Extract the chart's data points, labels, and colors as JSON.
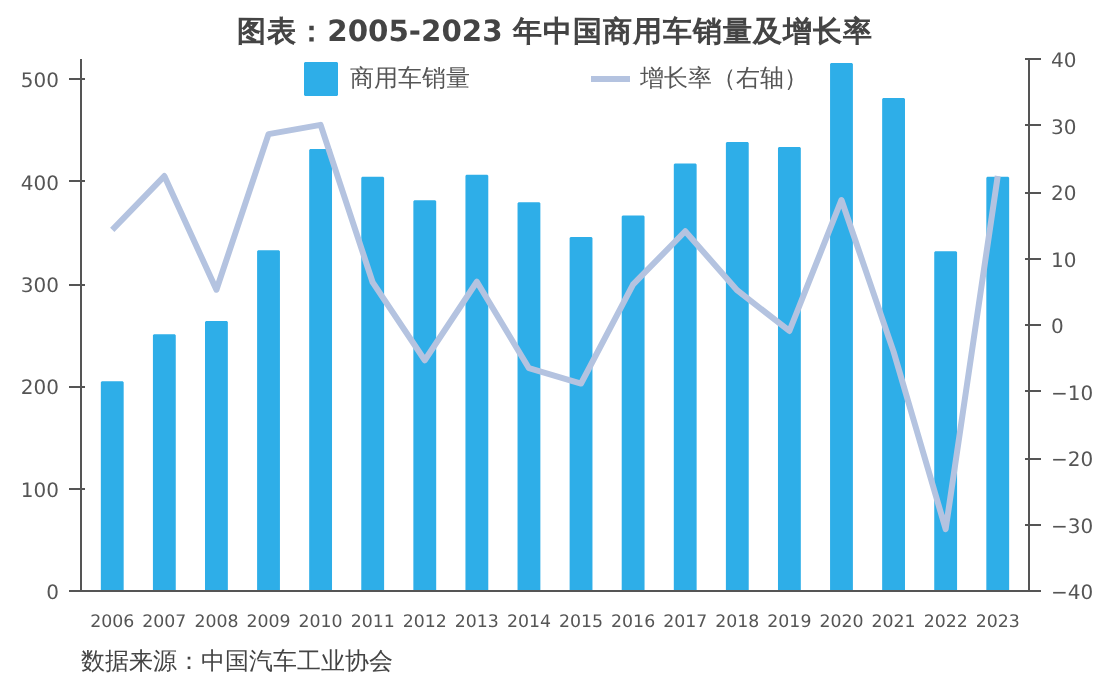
{
  "chart_data": {
    "type": "bar",
    "title": "图表：2005-2023 年中国商用车销量及增长率",
    "categories": [
      "2006",
      "2007",
      "2008",
      "2009",
      "2010",
      "2011",
      "2012",
      "2013",
      "2014",
      "2015",
      "2016",
      "2017",
      "2018",
      "2019",
      "2020",
      "2021",
      "2022",
      "2023"
    ],
    "series": [
      {
        "name": "商用车销量",
        "color": "#2eaee8",
        "values": [
          204,
          250,
          263,
          332,
          431,
          404,
          381,
          406,
          379,
          345,
          366,
          417,
          438,
          433,
          515,
          481,
          331,
          404
        ]
      },
      {
        "name": "增长率（右轴）",
        "type": "line",
        "axis": "y2",
        "color": "#b4c3e0",
        "values": [
          14.3,
          22.4,
          5.3,
          28.7,
          30.1,
          6.4,
          -5.3,
          6.5,
          -6.5,
          -8.8,
          6.1,
          14.1,
          5.2,
          -0.9,
          18.8,
          -4,
          -30.7,
          22.4
        ]
      }
    ],
    "ylim": [
      0,
      520
    ],
    "yticks": [
      0,
      100,
      200,
      300,
      400,
      500
    ],
    "y2lim": [
      -40,
      40
    ],
    "y2ticks": [
      -40,
      -30,
      -20,
      -10,
      0,
      10,
      20,
      30,
      40
    ],
    "grid": false,
    "legend": "top",
    "annotations": [
      "数据来源：中国汽车工业协会"
    ]
  }
}
